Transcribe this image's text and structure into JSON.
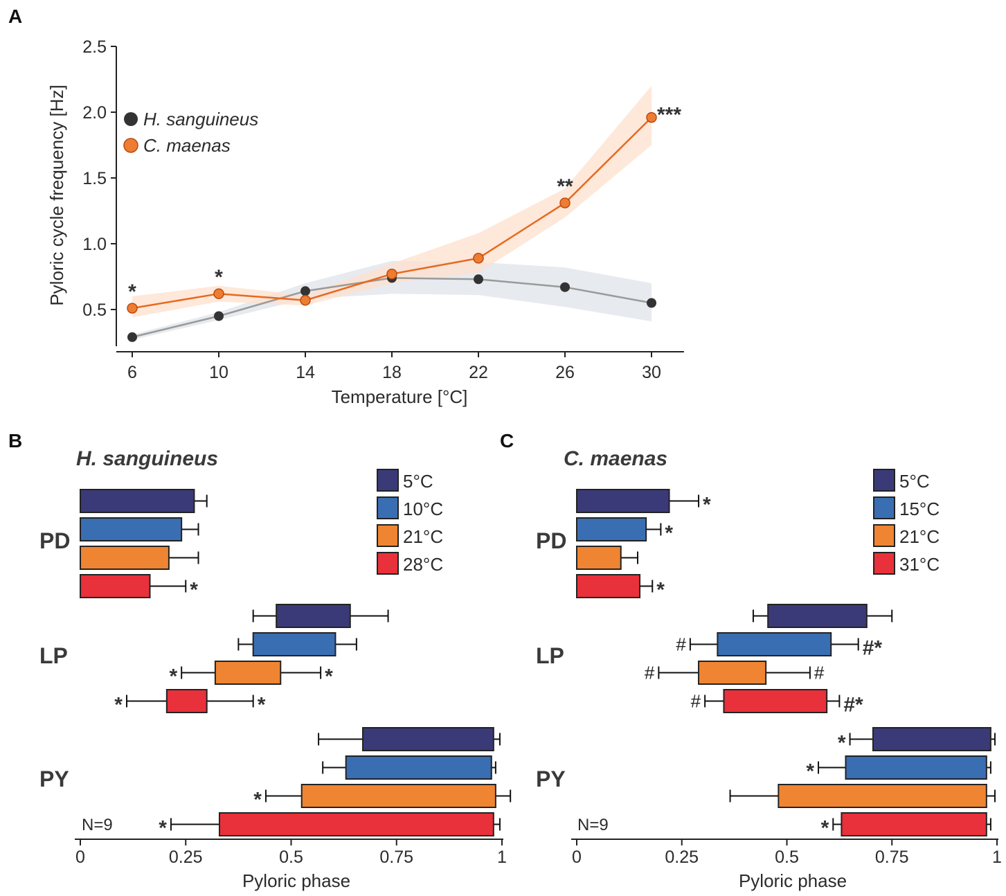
{
  "panels": {
    "a": "A",
    "b": "B",
    "c": "C"
  },
  "chart_data": [
    {
      "id": "A",
      "type": "line",
      "title": "",
      "xlabel": "Temperature [°C]",
      "ylabel": "Pyloric cycle frequency [Hz]",
      "x": [
        6,
        10,
        14,
        18,
        22,
        26,
        30
      ],
      "xticks": [
        "6",
        "10",
        "14",
        "18",
        "22",
        "26",
        "30"
      ],
      "yticks": [
        "0.5",
        "1.0",
        "1.5",
        "2.0",
        "2.5"
      ],
      "xlim": [
        5.2,
        31.5
      ],
      "ylim": [
        0.2,
        2.5
      ],
      "legend_position": "top-left",
      "series": [
        {
          "name": "H. sanguineus",
          "color": "#333333",
          "line_color": "#9a9a9a",
          "band_color": "#dfe3ea",
          "values": [
            0.29,
            0.45,
            0.64,
            0.74,
            0.73,
            0.67,
            0.55
          ],
          "band_lower": [
            0.27,
            0.42,
            0.58,
            0.62,
            0.61,
            0.52,
            0.41
          ],
          "band_upper": [
            0.31,
            0.48,
            0.7,
            0.87,
            0.86,
            0.82,
            0.7
          ]
        },
        {
          "name": "C. maenas",
          "color": "#ee7d32",
          "line_color": "#e8681e",
          "band_color": "#fde0cd",
          "values": [
            0.51,
            0.62,
            0.57,
            0.77,
            0.89,
            1.31,
            1.96
          ],
          "band_lower": [
            0.44,
            0.56,
            0.53,
            0.7,
            0.78,
            1.2,
            1.75
          ],
          "band_upper": [
            0.6,
            0.68,
            0.61,
            0.85,
            1.08,
            1.42,
            2.2
          ]
        }
      ],
      "annotations": [
        {
          "x": 6,
          "text": "*"
        },
        {
          "x": 10,
          "text": "*"
        },
        {
          "x": 26,
          "text": "**"
        },
        {
          "x": 30,
          "text": "***"
        }
      ]
    },
    {
      "id": "B",
      "type": "bar",
      "orientation": "horizontal-floating",
      "title": "H. sanguineus",
      "xlabel": "Pyloric phase",
      "xticks": [
        "0",
        "0.25",
        "0.5",
        "0.75",
        "1"
      ],
      "xlim": [
        0,
        1
      ],
      "n_label": "N=9",
      "legend_position": "top-right",
      "conditions": [
        {
          "label": "5°C",
          "color": "#3b3a78"
        },
        {
          "label": "10°C",
          "color": "#3a6eb3"
        },
        {
          "label": "21°C",
          "color": "#ef8532"
        },
        {
          "label": "28°C",
          "color": "#e8313a"
        }
      ],
      "neurons": [
        {
          "name": "PD",
          "bars": [
            {
              "start": 0,
              "end": 0.27,
              "err_lo": null,
              "err_hi": 0.3,
              "mark_left": "",
              "mark_right": ""
            },
            {
              "start": 0,
              "end": 0.24,
              "err_lo": null,
              "err_hi": 0.28,
              "mark_left": "",
              "mark_right": ""
            },
            {
              "start": 0,
              "end": 0.21,
              "err_lo": null,
              "err_hi": 0.28,
              "mark_left": "",
              "mark_right": ""
            },
            {
              "start": 0,
              "end": 0.165,
              "err_lo": null,
              "err_hi": 0.25,
              "mark_left": "",
              "mark_right": "*"
            }
          ]
        },
        {
          "name": "LP",
          "bars": [
            {
              "start": 0.465,
              "end": 0.64,
              "err_lo": 0.41,
              "err_hi": 0.73,
              "mark_left": "",
              "mark_right": ""
            },
            {
              "start": 0.41,
              "end": 0.605,
              "err_lo": 0.375,
              "err_hi": 0.655,
              "mark_left": "",
              "mark_right": ""
            },
            {
              "start": 0.32,
              "end": 0.475,
              "err_lo": 0.24,
              "err_hi": 0.57,
              "mark_left": "*",
              "mark_right": "*"
            },
            {
              "start": 0.205,
              "end": 0.3,
              "err_lo": 0.11,
              "err_hi": 0.41,
              "mark_left": "*",
              "mark_right": "*"
            }
          ]
        },
        {
          "name": "PY",
          "bars": [
            {
              "start": 0.67,
              "end": 0.98,
              "err_lo": 0.565,
              "err_hi": 0.995,
              "mark_left": "",
              "mark_right": ""
            },
            {
              "start": 0.63,
              "end": 0.975,
              "err_lo": 0.575,
              "err_hi": 0.985,
              "mark_left": "",
              "mark_right": ""
            },
            {
              "start": 0.525,
              "end": 0.985,
              "err_lo": 0.44,
              "err_hi": 1.02,
              "mark_left": "*",
              "mark_right": ""
            },
            {
              "start": 0.33,
              "end": 0.98,
              "err_lo": 0.215,
              "err_hi": 0.995,
              "mark_left": "*",
              "mark_right": ""
            }
          ]
        }
      ]
    },
    {
      "id": "C",
      "type": "bar",
      "orientation": "horizontal-floating",
      "title": "C. maenas",
      "xlabel": "Pyloric phase",
      "xticks": [
        "0",
        "0.25",
        "0.5",
        "0.75",
        "1"
      ],
      "xlim": [
        0,
        1
      ],
      "n_label": "N=9",
      "legend_position": "top-right",
      "conditions": [
        {
          "label": "5°C",
          "color": "#3b3a78"
        },
        {
          "label": "15°C",
          "color": "#3a6eb3"
        },
        {
          "label": "21°C",
          "color": "#ef8532"
        },
        {
          "label": "31°C",
          "color": "#e8313a"
        }
      ],
      "neurons": [
        {
          "name": "PD",
          "bars": [
            {
              "start": 0,
              "end": 0.22,
              "err_lo": null,
              "err_hi": 0.29,
              "mark_left": "",
              "mark_right": "*"
            },
            {
              "start": 0,
              "end": 0.165,
              "err_lo": null,
              "err_hi": 0.2,
              "mark_left": "",
              "mark_right": "*"
            },
            {
              "start": 0,
              "end": 0.105,
              "err_lo": null,
              "err_hi": 0.145,
              "mark_left": "",
              "mark_right": ""
            },
            {
              "start": 0,
              "end": 0.15,
              "err_lo": null,
              "err_hi": 0.18,
              "mark_left": "",
              "mark_right": "*"
            }
          ]
        },
        {
          "name": "LP",
          "bars": [
            {
              "start": 0.455,
              "end": 0.69,
              "err_lo": 0.42,
              "err_hi": 0.75,
              "mark_left": "",
              "mark_right": ""
            },
            {
              "start": 0.335,
              "end": 0.605,
              "err_lo": 0.27,
              "err_hi": 0.67,
              "mark_left": "#",
              "mark_right": "#*"
            },
            {
              "start": 0.29,
              "end": 0.45,
              "err_lo": 0.195,
              "err_hi": 0.555,
              "mark_left": "#",
              "mark_right": "#"
            },
            {
              "start": 0.35,
              "end": 0.595,
              "err_lo": 0.305,
              "err_hi": 0.625,
              "mark_left": "#",
              "mark_right": "#*"
            }
          ]
        },
        {
          "name": "PY",
          "bars": [
            {
              "start": 0.705,
              "end": 0.985,
              "err_lo": 0.65,
              "err_hi": 0.995,
              "mark_left": "*",
              "mark_right": ""
            },
            {
              "start": 0.64,
              "end": 0.975,
              "err_lo": 0.575,
              "err_hi": 0.985,
              "mark_left": "*",
              "mark_right": ""
            },
            {
              "start": 0.48,
              "end": 0.975,
              "err_lo": 0.365,
              "err_hi": 0.995,
              "mark_left": "",
              "mark_right": ""
            },
            {
              "start": 0.63,
              "end": 0.975,
              "err_lo": 0.61,
              "err_hi": 0.985,
              "mark_left": "*",
              "mark_right": ""
            }
          ]
        }
      ]
    }
  ]
}
